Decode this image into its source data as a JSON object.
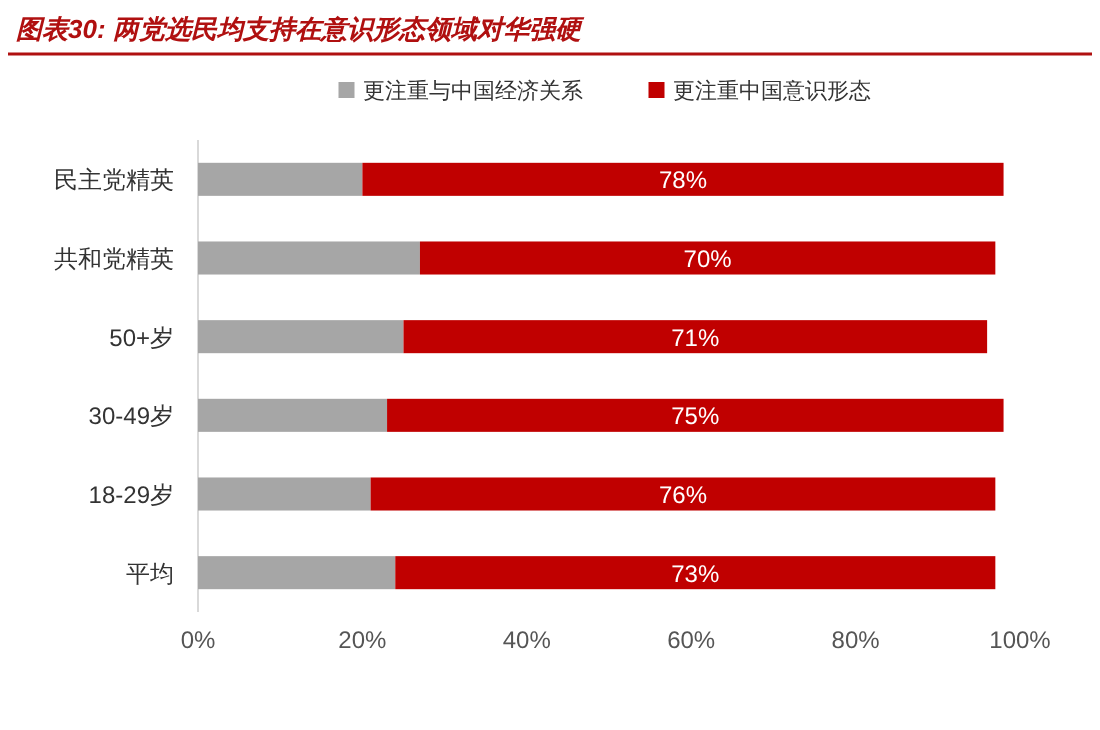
{
  "chart_data": {
    "type": "bar",
    "title": "图表30: 两党选民均支持在意识形态领域对华强硬",
    "categories": [
      "民主党精英",
      "共和党精英",
      "50+岁",
      "30-49岁",
      "18-29岁",
      "平均"
    ],
    "orientation": "horizontal",
    "stacked": true,
    "legend": "top",
    "series": [
      {
        "name": "更注重与中国经济关系",
        "color": "#a6a6a6",
        "values": [
          20,
          27,
          25,
          23,
          21,
          24
        ]
      },
      {
        "name": "更注重中国意识形态",
        "color": "#c00000",
        "values": [
          78,
          70,
          71,
          75,
          76,
          73
        ],
        "value_labels": [
          "78%",
          "70%",
          "71%",
          "75%",
          "76%",
          "73%"
        ]
      }
    ],
    "xlim": [
      0,
      100
    ],
    "xticks": [
      {
        "value": 0,
        "label": "0%"
      },
      {
        "value": 20,
        "label": "20%"
      },
      {
        "value": 40,
        "label": "40%"
      },
      {
        "value": 60,
        "label": "60%"
      },
      {
        "value": 80,
        "label": "80%"
      },
      {
        "value": 100,
        "label": "100%"
      }
    ]
  }
}
